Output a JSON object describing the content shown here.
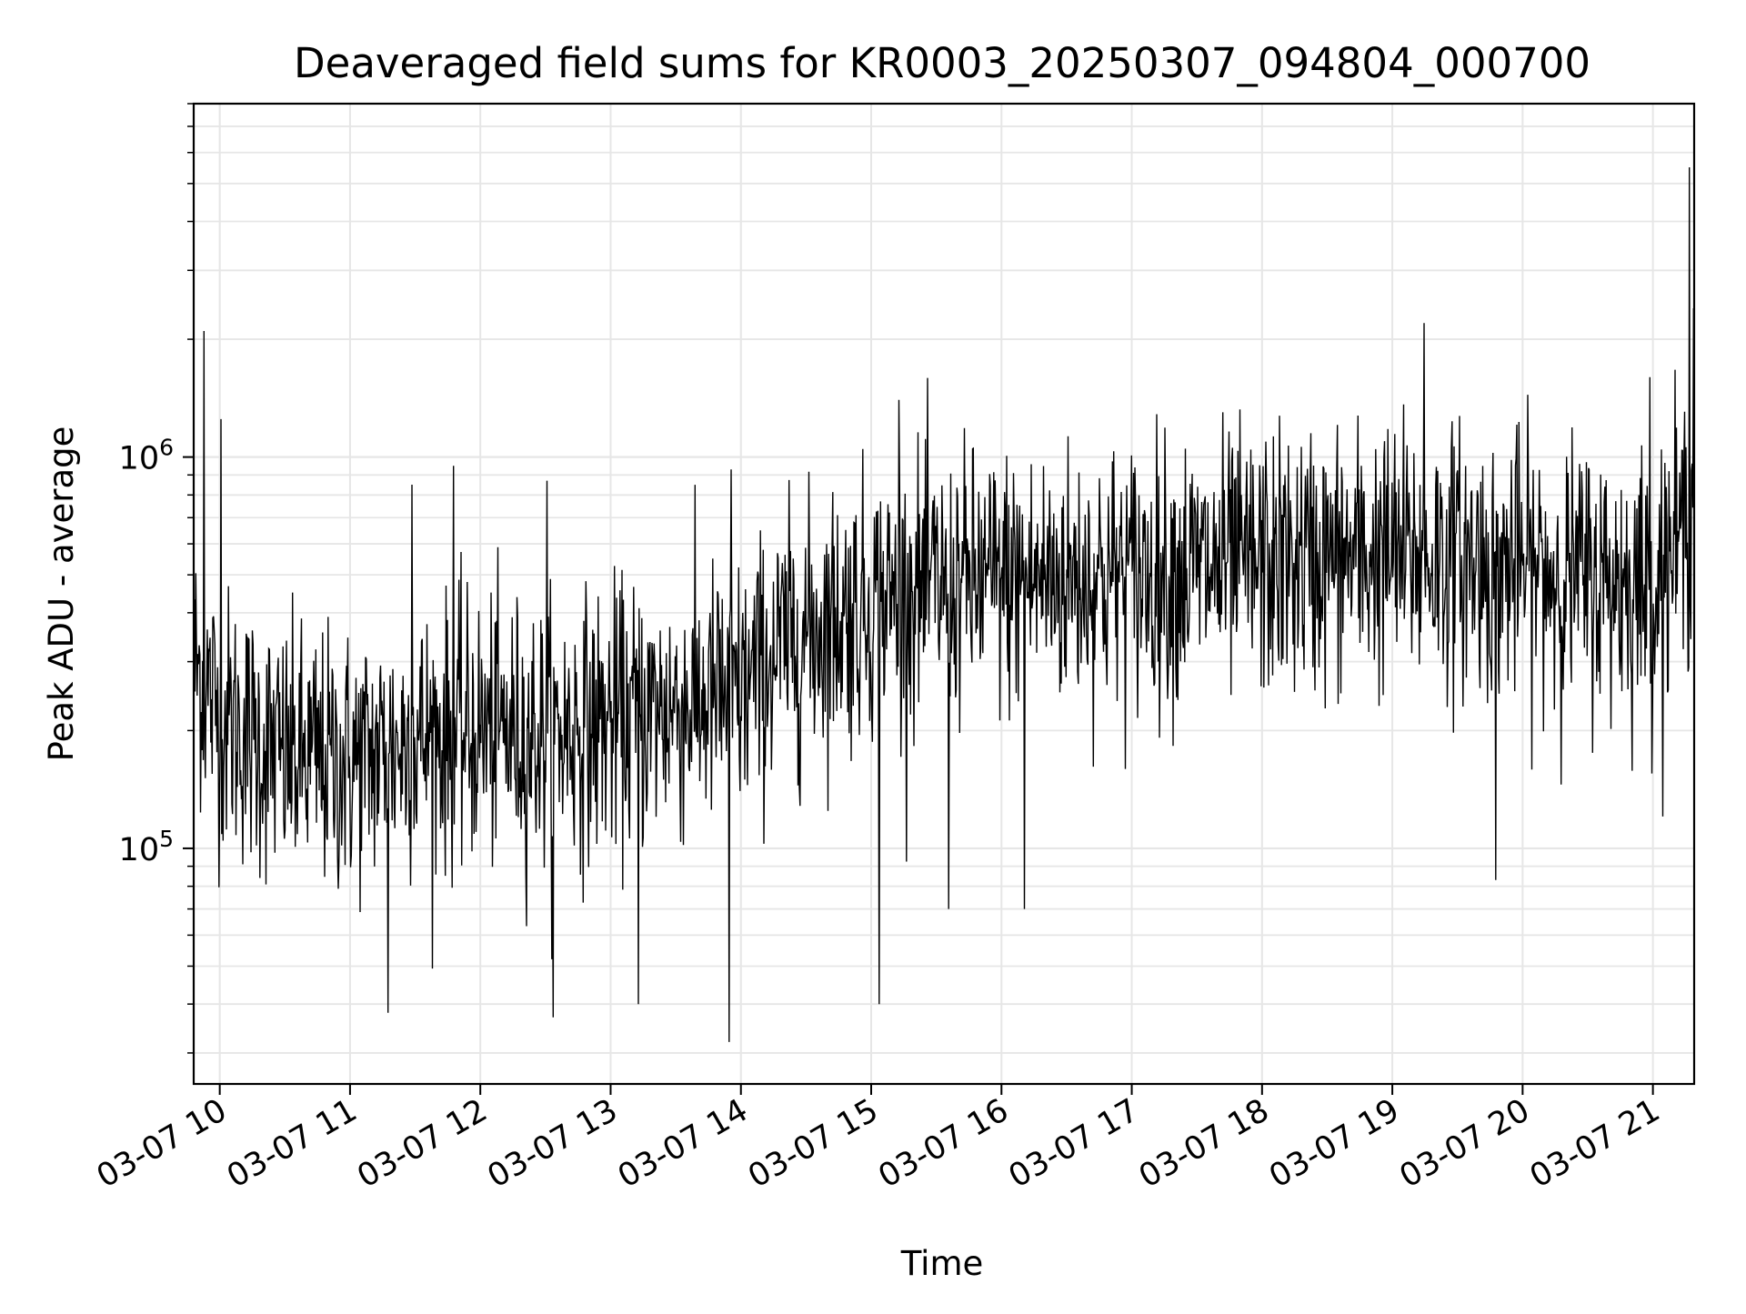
{
  "chart_data": {
    "type": "line",
    "title": "Deaveraged field sums for KR0003_20250307_094804_000700",
    "xlabel": "Time",
    "ylabel": "Peak ADU - average",
    "x_tick_labels": [
      "03-07 10",
      "03-07 11",
      "03-07 12",
      "03-07 13",
      "03-07 14",
      "03-07 15",
      "03-07 16",
      "03-07 17",
      "03-07 18",
      "03-07 19",
      "03-07 20",
      "03-07 21"
    ],
    "x_ticks": [
      "2025-03-07T10:00",
      "2025-03-07T11:00",
      "2025-03-07T12:00",
      "2025-03-07T13:00",
      "2025-03-07T14:00",
      "2025-03-07T15:00",
      "2025-03-07T16:00",
      "2025-03-07T17:00",
      "2025-03-07T18:00",
      "2025-03-07T19:00",
      "2025-03-07T20:00",
      "2025-03-07T21:00"
    ],
    "y_ticks": [
      {
        "value": 100000,
        "base": "10",
        "exp": "5"
      },
      {
        "value": 1000000,
        "base": "10",
        "exp": "6"
      }
    ],
    "xlim": [
      "2025-03-07T09:48",
      "2025-03-07T21:19"
    ],
    "ylim": [
      25000,
      8000000
    ],
    "yscale": "log",
    "grid": true,
    "line_color": "#000000",
    "grid_color": "#e6e6e6",
    "series": [
      {
        "x": [
          "2025-03-07T09:48",
          "2025-03-07T09:55",
          "2025-03-07T10:00",
          "2025-03-07T10:15",
          "2025-03-07T10:30",
          "2025-03-07T11:00",
          "2025-03-07T11:30",
          "2025-03-07T12:00",
          "2025-03-07T12:30",
          "2025-03-07T13:00",
          "2025-03-07T13:30",
          "2025-03-07T14:00",
          "2025-03-07T14:20",
          "2025-03-07T14:40",
          "2025-03-07T15:00",
          "2025-03-07T15:30",
          "2025-03-07T16:00",
          "2025-03-07T17:00",
          "2025-03-07T18:00",
          "2025-03-07T19:00",
          "2025-03-07T19:30",
          "2025-03-07T20:00",
          "2025-03-07T20:15",
          "2025-03-07T20:45",
          "2025-03-07T21:00",
          "2025-03-07T21:10",
          "2025-03-07T21:19"
        ],
        "values": [
          300000,
          250000,
          220000,
          190000,
          170000,
          165000,
          190000,
          200000,
          195000,
          210000,
          230000,
          250000,
          330000,
          380000,
          420000,
          470000,
          480000,
          500000,
          530000,
          560000,
          550000,
          520000,
          500000,
          480000,
          470000,
          600000,
          700000
        ],
        "spikes": [
          {
            "x": "2025-03-07T09:53",
            "value": 2100000
          },
          {
            "x": "2025-03-07T10:01",
            "value": 1250000
          },
          {
            "x": "2025-03-07T11:29",
            "value": 850000
          },
          {
            "x": "2025-03-07T11:48",
            "value": 950000
          },
          {
            "x": "2025-03-07T12:31",
            "value": 870000
          },
          {
            "x": "2025-03-07T13:56",
            "value": 930000
          },
          {
            "x": "2025-03-07T15:13",
            "value": 1400000
          },
          {
            "x": "2025-03-07T19:15",
            "value": 2200000
          },
          {
            "x": "2025-03-07T20:59",
            "value": 1600000
          },
          {
            "x": "2025-03-07T21:17",
            "value": 5500000
          },
          {
            "x": "2025-03-07T21:19",
            "value": 2400000
          },
          {
            "x": "2025-03-07T11:18",
            "value": 38000
          },
          {
            "x": "2025-03-07T12:34",
            "value": 37000
          },
          {
            "x": "2025-03-07T13:13",
            "value": 40000
          },
          {
            "x": "2025-03-07T13:55",
            "value": 32000
          },
          {
            "x": "2025-03-07T15:04",
            "value": 40000
          },
          {
            "x": "2025-03-07T15:36",
            "value": 70000
          },
          {
            "x": "2025-03-07T16:11",
            "value": 70000
          },
          {
            "x": "2025-03-07T19:48",
            "value": 83000
          }
        ]
      }
    ]
  }
}
